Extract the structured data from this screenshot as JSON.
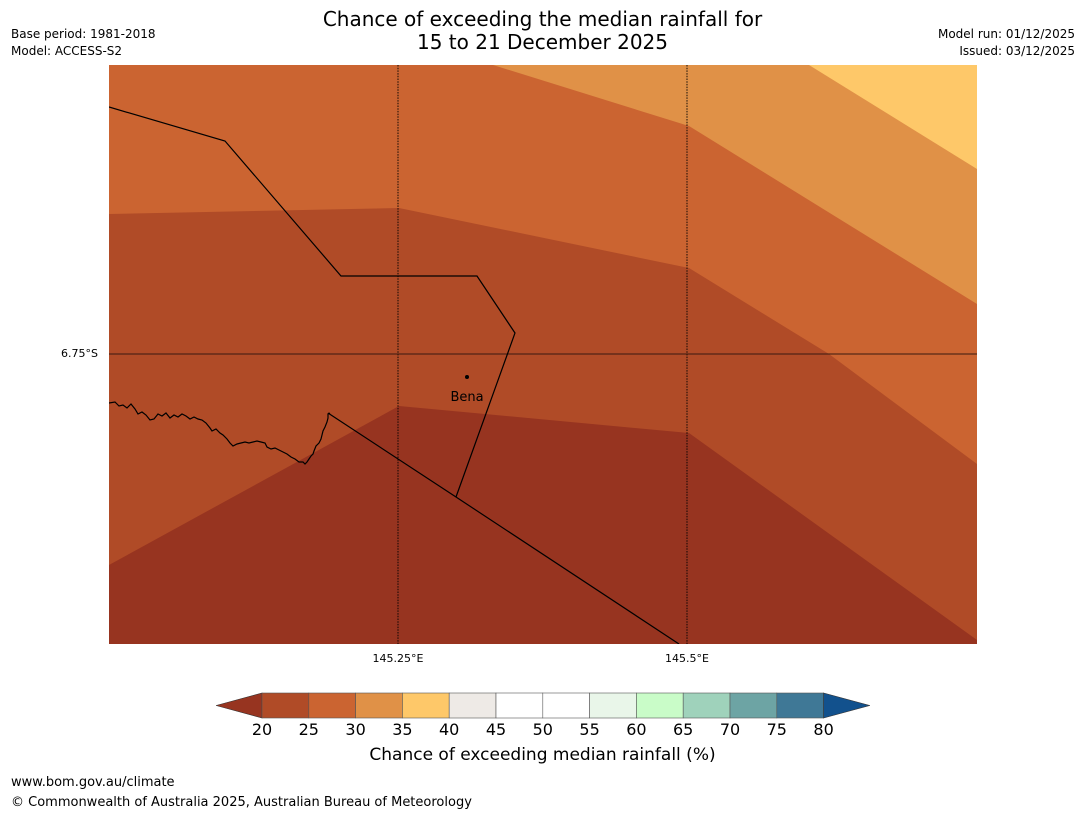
{
  "header": {
    "title_line1": "Chance of exceeding the median rainfall for",
    "title_line2": "15 to 21 December 2025",
    "base_period": "Base period: 1981-2018",
    "model": "Model: ACCESS-S2",
    "model_run": "Model run: 01/12/2025",
    "issued": "Issued: 03/12/2025"
  },
  "map": {
    "lat_tick": "6.75°S",
    "lon_ticks": [
      "145.25°E",
      "145.5°E"
    ],
    "place_label": "Bena",
    "band_colors": {
      "c20_25": "#973420",
      "c25_30": "#b04b27",
      "c30_35": "#cb6431",
      "c35_40": "#e09147",
      "c40_45": "#fec869"
    }
  },
  "legend": {
    "title": "Chance of exceeding median rainfall (%)",
    "ticks": [
      "20",
      "25",
      "30",
      "35",
      "40",
      "45",
      "50",
      "55",
      "60",
      "65",
      "70",
      "75",
      "80"
    ],
    "colors": [
      "#973420",
      "#b04b27",
      "#cb6431",
      "#e09147",
      "#fec869",
      "#eeeae6",
      "#ffffff",
      "#ffffff",
      "#e9f6e9",
      "#c9fcc8",
      "#9fd2bb",
      "#6da4a4",
      "#3f7896",
      "#12518d"
    ]
  },
  "footer": {
    "url": "www.bom.gov.au/climate",
    "copyright": "© Commonwealth of Australia 2025, Australian Bureau of Meteorology"
  }
}
